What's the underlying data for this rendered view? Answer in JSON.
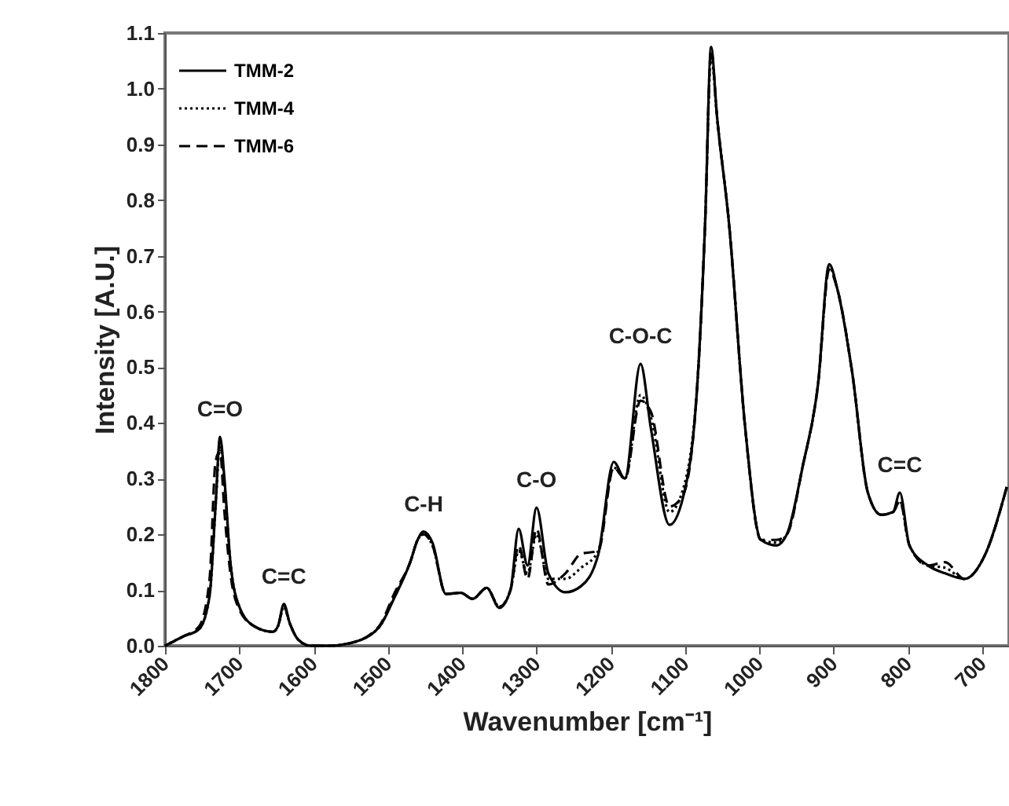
{
  "chart_data": {
    "type": "line",
    "xlabel": "Wavenumber [cm⁻¹]",
    "ylabel": "Intensity [A.U.]",
    "x": [
      1800,
      1775,
      1754,
      1740,
      1732,
      1726,
      1720,
      1712,
      1700,
      1680,
      1655,
      1648,
      1640,
      1632,
      1620,
      1604,
      1580,
      1550,
      1512,
      1491,
      1470,
      1460,
      1452,
      1440,
      1422,
      1402,
      1386,
      1367,
      1350,
      1335,
      1324,
      1312,
      1300,
      1284,
      1261,
      1240,
      1217,
      1196,
      1181,
      1160,
      1146,
      1121,
      1103,
      1083,
      1073,
      1065,
      1057,
      1041,
      1019,
      998,
      977,
      963,
      942,
      921,
      906,
      895,
      875,
      854,
      836,
      820,
      811,
      798,
      773,
      750,
      724,
      695,
      667
    ],
    "series": [
      {
        "name": "TMM-2",
        "color": "#000000",
        "line_style": "solid",
        "values": [
          0.0,
          0.017,
          0.03,
          0.09,
          0.25,
          0.375,
          0.3,
          0.15,
          0.07,
          0.035,
          0.025,
          0.035,
          0.075,
          0.04,
          0.01,
          0.0,
          0.0,
          0.005,
          0.033,
          0.087,
          0.15,
          0.19,
          0.205,
          0.185,
          0.093,
          0.095,
          0.084,
          0.104,
          0.068,
          0.1,
          0.21,
          0.144,
          0.248,
          0.13,
          0.096,
          0.107,
          0.163,
          0.33,
          0.3,
          0.506,
          0.39,
          0.217,
          0.265,
          0.48,
          0.76,
          1.075,
          0.95,
          0.76,
          0.39,
          0.19,
          0.18,
          0.2,
          0.32,
          0.47,
          0.685,
          0.64,
          0.49,
          0.275,
          0.235,
          0.24,
          0.275,
          0.18,
          0.144,
          0.13,
          0.12,
          0.167,
          0.285
        ]
      },
      {
        "name": "TMM-4",
        "color": "#000000",
        "line_style": "dotted",
        "values": [
          0.0,
          0.017,
          0.03,
          0.09,
          0.25,
          0.36,
          0.29,
          0.15,
          0.07,
          0.035,
          0.025,
          0.035,
          0.07,
          0.04,
          0.01,
          0.0,
          0.0,
          0.005,
          0.033,
          0.09,
          0.15,
          0.19,
          0.2,
          0.18,
          0.093,
          0.095,
          0.084,
          0.104,
          0.07,
          0.1,
          0.17,
          0.13,
          0.2,
          0.12,
          0.12,
          0.14,
          0.17,
          0.32,
          0.3,
          0.45,
          0.41,
          0.24,
          0.28,
          0.48,
          0.76,
          1.06,
          0.95,
          0.76,
          0.39,
          0.19,
          0.185,
          0.2,
          0.32,
          0.47,
          0.68,
          0.64,
          0.49,
          0.275,
          0.235,
          0.24,
          0.26,
          0.18,
          0.144,
          0.14,
          0.12,
          0.167,
          0.285
        ]
      },
      {
        "name": "TMM-6",
        "color": "#000000",
        "line_style": "dashed",
        "values": [
          0.0,
          0.017,
          0.035,
          0.12,
          0.33,
          0.35,
          0.24,
          0.13,
          0.065,
          0.035,
          0.025,
          0.035,
          0.07,
          0.04,
          0.01,
          0.0,
          0.0,
          0.005,
          0.035,
          0.095,
          0.15,
          0.19,
          0.2,
          0.18,
          0.093,
          0.095,
          0.084,
          0.104,
          0.07,
          0.1,
          0.18,
          0.12,
          0.21,
          0.11,
          0.13,
          0.165,
          0.17,
          0.32,
          0.3,
          0.44,
          0.42,
          0.25,
          0.27,
          0.48,
          0.76,
          1.07,
          0.95,
          0.76,
          0.39,
          0.19,
          0.19,
          0.2,
          0.32,
          0.47,
          0.675,
          0.64,
          0.49,
          0.275,
          0.235,
          0.24,
          0.26,
          0.18,
          0.144,
          0.15,
          0.12,
          0.167,
          0.285
        ]
      }
    ],
    "xlim": [
      1800,
      664
    ],
    "xticks": [
      1800,
      1700,
      1600,
      1500,
      1400,
      1300,
      1200,
      1100,
      1000,
      900,
      800,
      700
    ],
    "ylim": [
      0,
      1.1
    ],
    "yticks": [
      {
        "value": 0,
        "label": "0.0"
      },
      {
        "value": 0.1,
        "label": "0.1"
      },
      {
        "value": 0.2,
        "label": "0.2"
      },
      {
        "value": 0.3,
        "label": "0.3"
      },
      {
        "value": 0.4,
        "label": "0.4"
      },
      {
        "value": 0.5,
        "label": "0.5"
      },
      {
        "value": 0.6,
        "label": "0.6"
      },
      {
        "value": 0.7,
        "label": "0.7"
      },
      {
        "value": 0.8,
        "label": "0.8"
      },
      {
        "value": 0.9,
        "label": "0.9"
      },
      {
        "value": 1.0,
        "label": "1.0"
      },
      {
        "value": 1.1,
        "label": "1.1"
      }
    ],
    "annotations": [
      {
        "text": "C=O",
        "x": 1726,
        "y": 0.375
      },
      {
        "text": "C=C",
        "x": 1640,
        "y": 0.075
      },
      {
        "text": "C-H",
        "x": 1452,
        "y": 0.205
      },
      {
        "text": "C-O",
        "x": 1300,
        "y": 0.248
      },
      {
        "text": "C-O-C",
        "x": 1160,
        "y": 0.506
      },
      {
        "text": "C=C",
        "x": 811,
        "y": 0.275
      }
    ],
    "legend": "top left",
    "grid": false,
    "marker": "none"
  }
}
